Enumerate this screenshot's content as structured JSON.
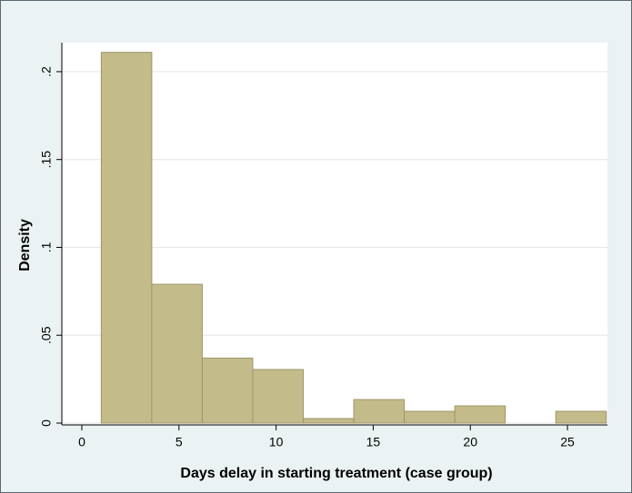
{
  "chart_data": {
    "type": "histogram",
    "x_label": "Days delay in starting treatment (case group)",
    "y_label": "Density",
    "bins": [
      1,
      3.6,
      6.2,
      8.8,
      11.4,
      14,
      16.6,
      19.2,
      21.8,
      24.4,
      27
    ],
    "values": [
      0.211,
      0.079,
      0.037,
      0.0305,
      0.0026,
      0.0134,
      0.0067,
      0.0098,
      0,
      0.0067
    ],
    "color": "#c4bb8b",
    "xlim": [
      -1.03,
      27.06
    ],
    "ylim": [
      0,
      0.2165
    ],
    "xticks": [
      0,
      5,
      10,
      15,
      20,
      25
    ],
    "yticks": [
      0,
      {
        "value": 0.05,
        "label": ".05"
      },
      {
        "value": 0.1,
        "label": ".1"
      },
      {
        "value": 0.15,
        "label": ".15"
      },
      {
        "value": 0.2,
        "label": ".2"
      }
    ],
    "grid": true
  }
}
